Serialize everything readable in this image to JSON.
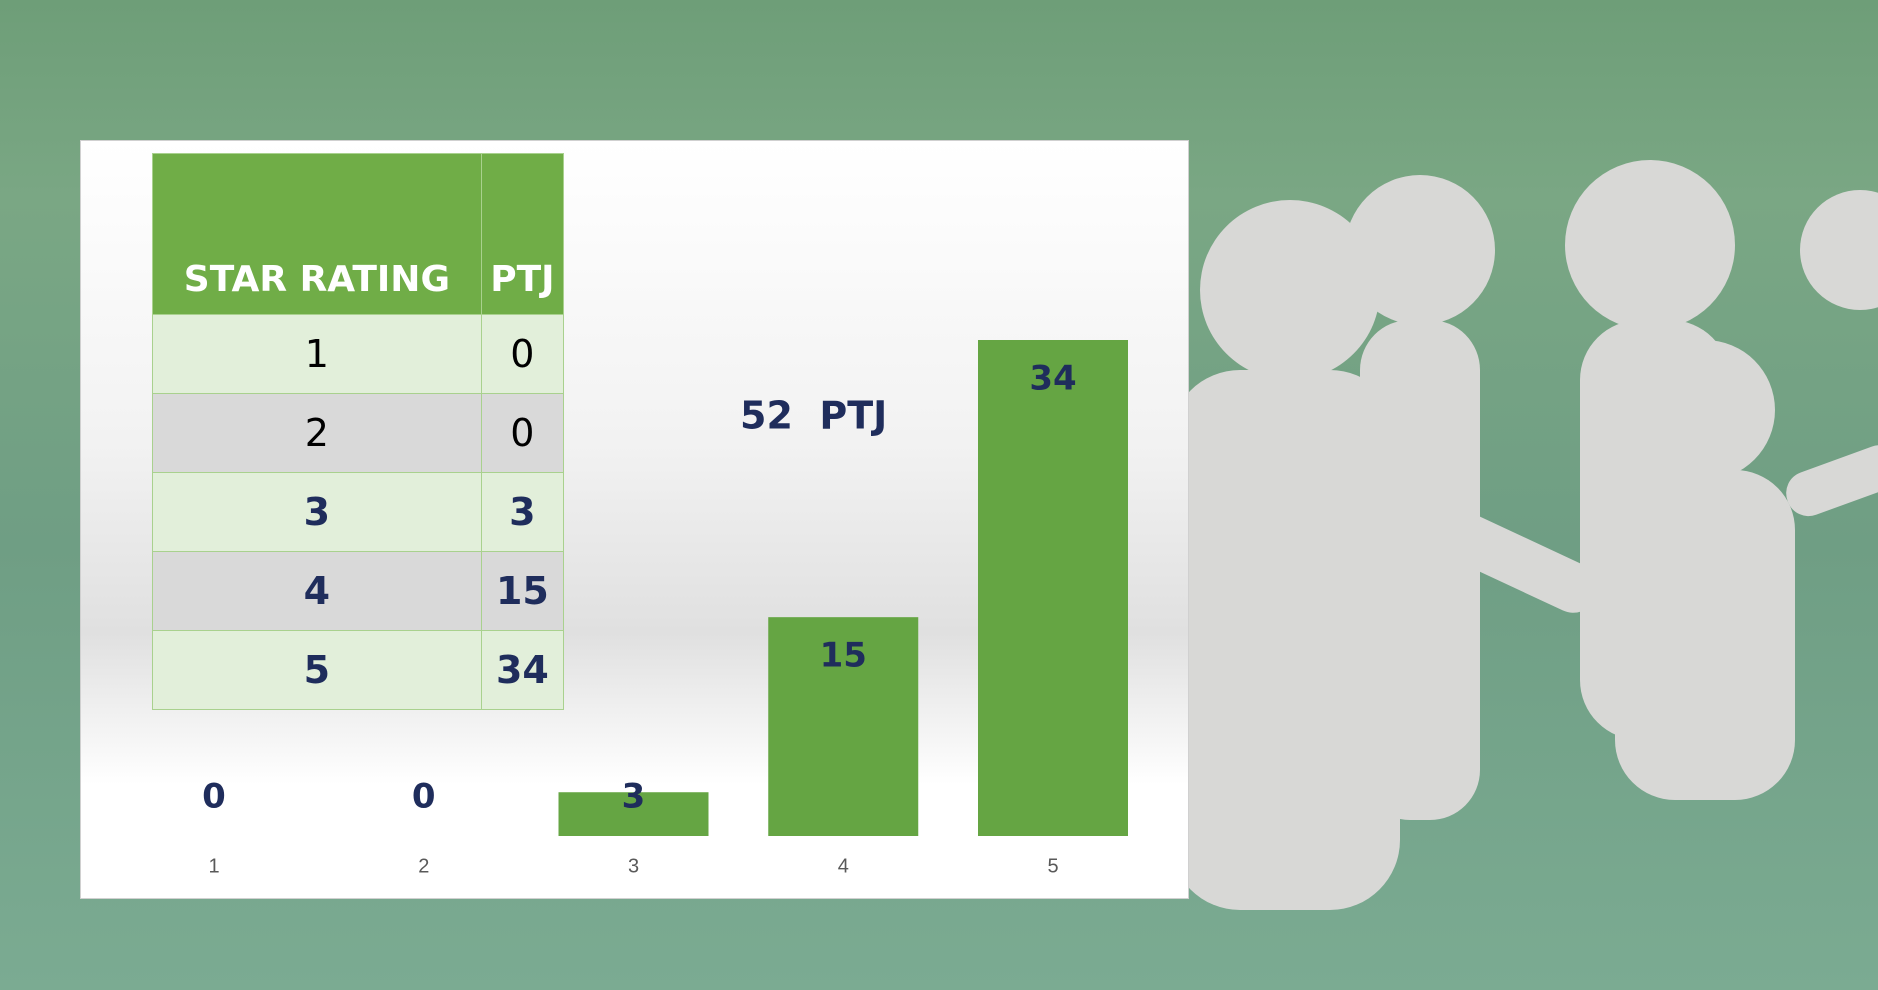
{
  "table": {
    "header": [
      "STAR RATING",
      "PTJ"
    ],
    "rows": [
      [
        1,
        0
      ],
      [
        2,
        0
      ],
      [
        3,
        3
      ],
      [
        4,
        15
      ],
      [
        5,
        34
      ]
    ]
  },
  "chart_data": {
    "type": "bar",
    "annotation": "52  PTJ",
    "categories": [
      "1",
      "2",
      "3",
      "4",
      "5"
    ],
    "values": [
      0,
      0,
      3,
      15,
      34
    ],
    "color": "#65a543",
    "ylim": [
      0,
      34
    ]
  }
}
